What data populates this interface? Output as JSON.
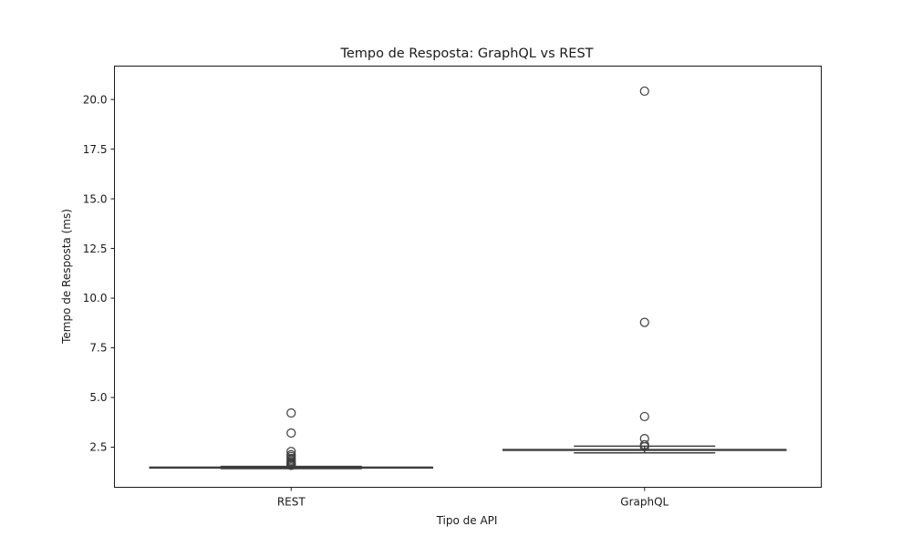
{
  "chart_data": {
    "type": "box",
    "title": "Tempo de Resposta: GraphQL vs REST",
    "xlabel": "Tipo de API",
    "ylabel": "Tempo de Resposta (ms)",
    "categories": [
      "REST",
      "GraphQL"
    ],
    "ylim": [
      0.48,
      21.68
    ],
    "yticks": [
      2.5,
      5.0,
      7.5,
      10.0,
      12.5,
      15.0,
      17.5,
      20.0
    ],
    "ytick_labels": [
      "2.5",
      "5.0",
      "7.5",
      "10.0",
      "12.5",
      "15.0",
      "17.5",
      "20.0"
    ],
    "grid": false,
    "legend": "none",
    "box_color": "#3d3d3d",
    "boxes": [
      {
        "category": "REST",
        "whisker_low": 1.42,
        "q1": 1.45,
        "median": 1.47,
        "q3": 1.49,
        "whisker_high": 1.53,
        "outliers": [
          4.22,
          3.21,
          2.28,
          2.12,
          2.03,
          1.93,
          1.85,
          1.78,
          1.72,
          1.67,
          1.62,
          1.58
        ]
      },
      {
        "category": "GraphQL",
        "whisker_low": 2.21,
        "q1": 2.34,
        "median": 2.36,
        "q3": 2.38,
        "whisker_high": 2.55,
        "outliers": [
          20.42,
          8.78,
          4.04,
          2.93,
          2.62,
          2.52
        ]
      }
    ]
  }
}
